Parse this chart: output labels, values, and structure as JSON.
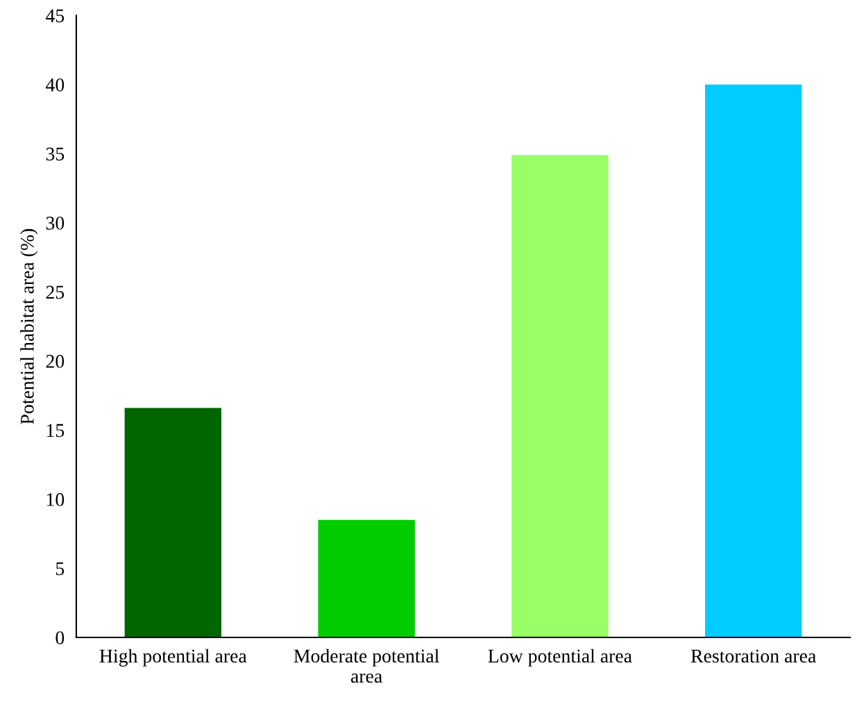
{
  "chart_data": {
    "type": "bar",
    "ylabel": "Potential habitat area (%)",
    "categories": [
      "High potential area",
      "Moderate potential area",
      "Low potential area",
      "Restoration area"
    ],
    "values": [
      16.6,
      8.5,
      34.9,
      40
    ],
    "colors": [
      "#006600",
      "#00cc00",
      "#99ff66",
      "#00ccff"
    ],
    "ylim": [
      0,
      45
    ],
    "yticks": [
      0,
      5,
      10,
      15,
      20,
      25,
      30,
      35,
      40,
      45
    ],
    "grid": false,
    "legend": false
  }
}
